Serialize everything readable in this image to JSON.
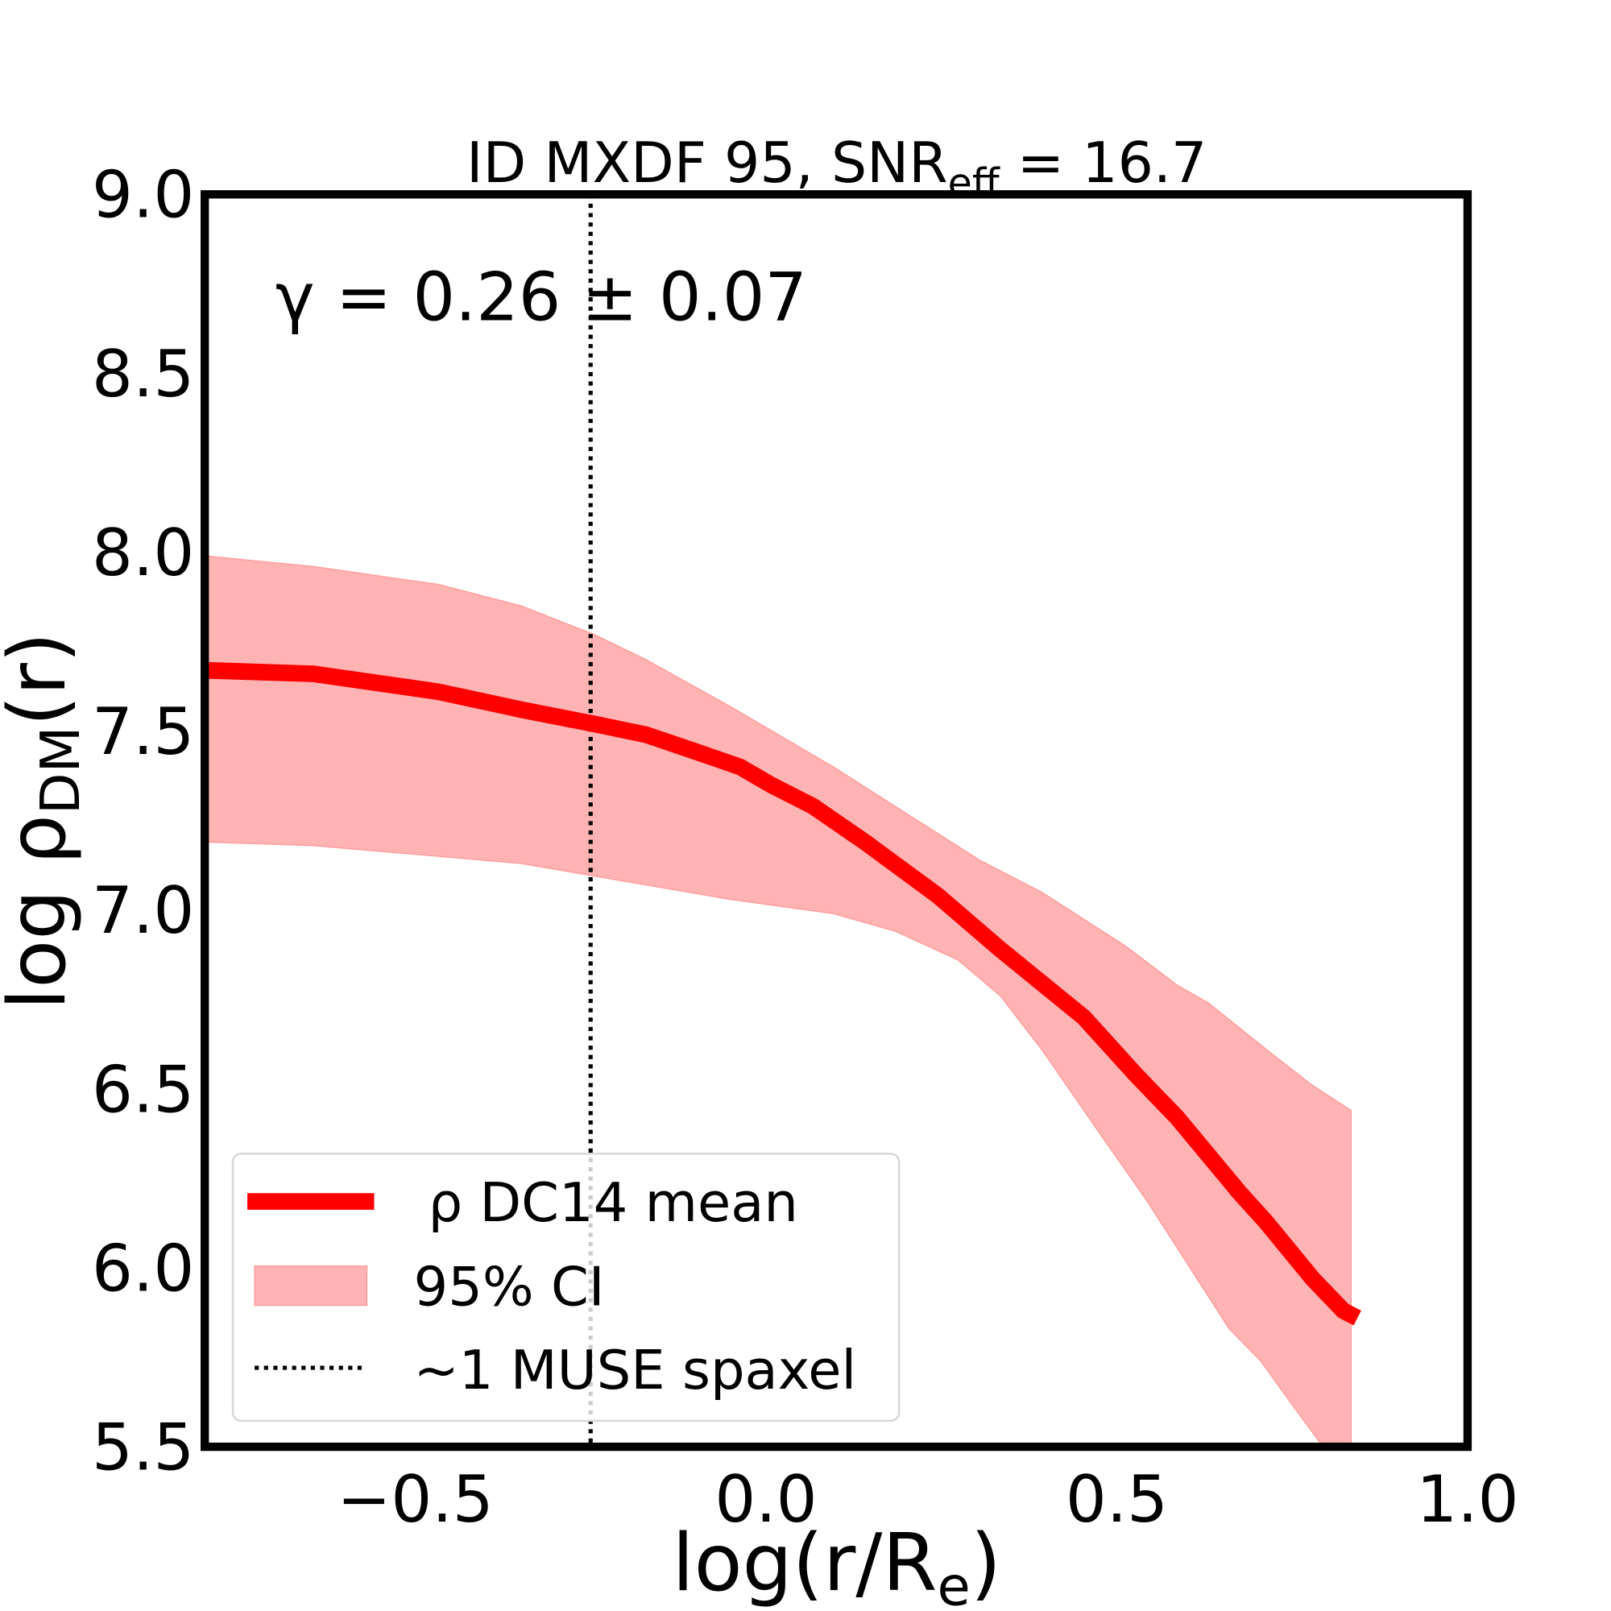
{
  "chart_data": {
    "type": "line",
    "title": "ID MXDF 95, SNR",
    "title_sub": "eff",
    "title_tail": " = 16.7",
    "annotation": "γ = 0.26 ± 0.07",
    "xlabel": "log(r/R",
    "xlabel_sub": "e",
    "xlabel_tail": ")",
    "ylabel": "log ρ",
    "ylabel_sub": "DM",
    "ylabel_tail": "(r)",
    "xlim": [
      -0.8,
      1.0
    ],
    "ylim": [
      5.5,
      9.0
    ],
    "xticks": [
      "−0.5",
      "0.0",
      "0.5",
      "1.0"
    ],
    "xtick_values": [
      -0.5,
      0.0,
      0.5,
      1.0
    ],
    "yticks": [
      "5.5",
      "6.0",
      "6.5",
      "7.0",
      "7.5",
      "8.0",
      "8.5",
      "9.0"
    ],
    "ytick_values": [
      5.5,
      6.0,
      6.5,
      7.0,
      7.5,
      8.0,
      8.5,
      9.0
    ],
    "grid": false,
    "legend_placement": "lower-left",
    "colors": {
      "mean": "#ff0000",
      "band": "#ffb3b3",
      "vline": "#000000"
    },
    "vline": {
      "x": -0.25,
      "label": "~1 MUSE spaxel"
    },
    "mean": {
      "name": "ρ DC14 mean",
      "x": [
        -0.8,
        -0.645,
        -0.467,
        -0.349,
        -0.245,
        -0.171,
        -0.096,
        -0.037,
        0.007,
        0.067,
        0.141,
        0.245,
        0.334,
        0.453,
        0.527,
        0.586,
        0.675,
        0.712,
        0.779,
        0.823,
        0.843
      ],
      "y": [
        7.67,
        7.66,
        7.61,
        7.56,
        7.52,
        7.49,
        7.44,
        7.4,
        7.35,
        7.29,
        7.19,
        7.04,
        6.89,
        6.7,
        6.54,
        6.42,
        6.21,
        6.13,
        5.97,
        5.88,
        5.86
      ]
    },
    "band": {
      "name": "95% CI",
      "upper_x": [
        -0.8,
        -0.645,
        -0.467,
        -0.349,
        -0.245,
        -0.171,
        -0.052,
        0.096,
        0.304,
        0.393,
        0.512,
        0.586,
        0.631,
        0.72,
        0.779,
        0.834
      ],
      "upper_y": [
        7.99,
        7.96,
        7.91,
        7.85,
        7.77,
        7.7,
        7.57,
        7.4,
        7.14,
        7.05,
        6.9,
        6.79,
        6.74,
        6.6,
        6.51,
        6.44
      ],
      "lower_x": [
        -0.8,
        -0.645,
        -0.467,
        -0.349,
        -0.171,
        -0.052,
        0.096,
        0.185,
        0.274,
        0.334,
        0.393,
        0.467,
        0.542,
        0.601,
        0.66,
        0.705,
        0.749,
        0.794,
        0.834
      ],
      "lower_y": [
        7.19,
        7.18,
        7.15,
        7.13,
        7.07,
        7.03,
        6.99,
        6.94,
        6.86,
        6.76,
        6.61,
        6.4,
        6.19,
        6.01,
        5.83,
        5.74,
        5.62,
        5.5,
        5.5
      ]
    }
  }
}
